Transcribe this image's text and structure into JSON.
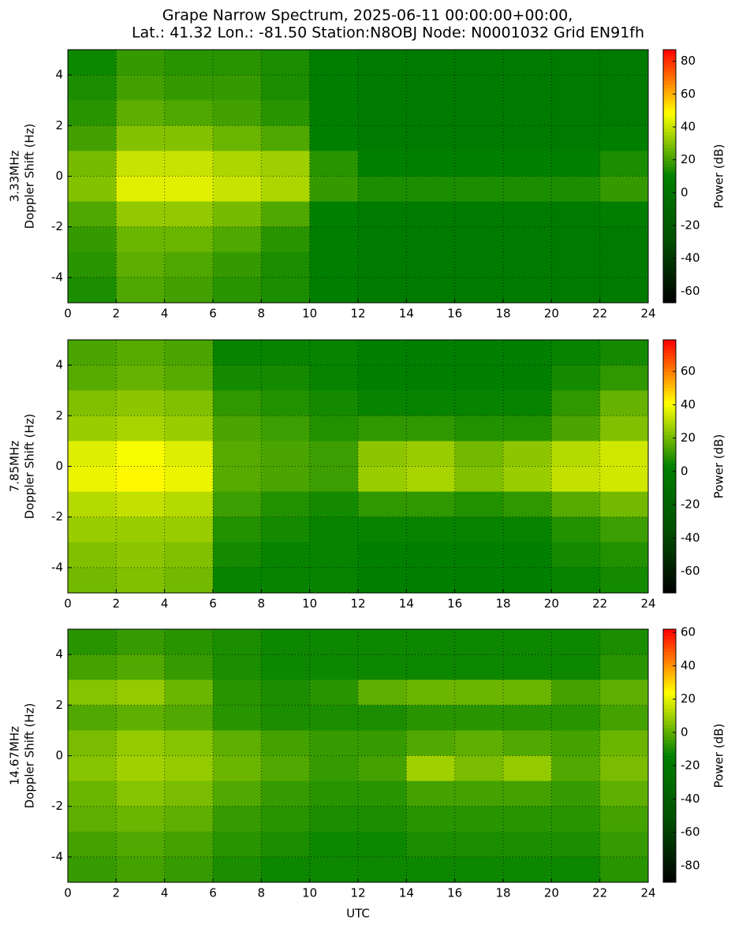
{
  "chart_data": [
    {
      "type": "heatmap",
      "title": [
        "Grape Narrow Spectrum, 2025-06-11 00:00:00+00:00,",
        "Lat.: 41.32 Lon.: -81.50 Station:N8OBJ Node: N0001032 Grid EN91fh"
      ],
      "ylabel": [
        "3.33MHz",
        "Doppler Shift (Hz)"
      ],
      "colorbar_label": "Power (dB)",
      "x": [
        1,
        3,
        5,
        7,
        9,
        11,
        13,
        15,
        17,
        19,
        21,
        23
      ],
      "y": [
        4.5,
        3.5,
        2.5,
        1.5,
        0.5,
        -0.5,
        -1.5,
        -2.5,
        -3.5,
        -4.5
      ],
      "z": [
        [
          12,
          18,
          16,
          16,
          14,
          8,
          6,
          6,
          6,
          6,
          6,
          6
        ],
        [
          14,
          20,
          18,
          18,
          14,
          8,
          6,
          6,
          6,
          6,
          6,
          6
        ],
        [
          16,
          24,
          22,
          20,
          16,
          8,
          6,
          6,
          6,
          6,
          6,
          6
        ],
        [
          20,
          30,
          30,
          26,
          22,
          10,
          6,
          6,
          6,
          6,
          6,
          8
        ],
        [
          28,
          40,
          40,
          36,
          34,
          16,
          10,
          10,
          10,
          10,
          10,
          14
        ],
        [
          30,
          44,
          44,
          40,
          36,
          18,
          14,
          14,
          14,
          14,
          14,
          18
        ],
        [
          22,
          32,
          32,
          28,
          22,
          10,
          6,
          6,
          6,
          6,
          6,
          8
        ],
        [
          18,
          26,
          26,
          22,
          16,
          8,
          6,
          6,
          6,
          6,
          6,
          6
        ],
        [
          16,
          24,
          22,
          18,
          14,
          8,
          6,
          6,
          6,
          6,
          6,
          6
        ],
        [
          14,
          22,
          20,
          16,
          14,
          8,
          6,
          6,
          6,
          6,
          6,
          6
        ]
      ],
      "xlim": [
        0,
        24
      ],
      "xticks": [
        0,
        2,
        4,
        6,
        8,
        10,
        12,
        14,
        16,
        18,
        20,
        22,
        24
      ],
      "ylim": [
        -5,
        5
      ],
      "yticks": [
        -4,
        -2,
        0,
        2,
        4
      ],
      "clim": [
        -67,
        87
      ],
      "cticks": [
        -60,
        -40,
        -20,
        0,
        20,
        40,
        60,
        80
      ],
      "colormap": [
        "#000000",
        "#005000",
        "#008000",
        "#ffff00",
        "#ff0000"
      ],
      "grid": true
    },
    {
      "type": "heatmap",
      "ylabel": [
        "7.85MHz",
        "Doppler Shift (Hz)"
      ],
      "colorbar_label": "Power (dB)",
      "x": [
        1,
        3,
        5,
        7,
        9,
        11,
        13,
        15,
        17,
        19,
        21,
        23
      ],
      "y": [
        4.5,
        3.5,
        2.5,
        1.5,
        0.5,
        -0.5,
        -1.5,
        -2.5,
        -3.5,
        -4.5
      ],
      "z": [
        [
          14,
          16,
          14,
          4,
          4,
          4,
          2,
          2,
          2,
          2,
          4,
          6
        ],
        [
          16,
          18,
          16,
          6,
          6,
          4,
          2,
          2,
          2,
          2,
          6,
          10
        ],
        [
          22,
          24,
          22,
          10,
          8,
          6,
          4,
          4,
          4,
          4,
          10,
          18
        ],
        [
          26,
          28,
          26,
          14,
          12,
          8,
          10,
          10,
          8,
          8,
          14,
          22
        ],
        [
          36,
          40,
          36,
          16,
          14,
          12,
          24,
          26,
          20,
          24,
          30,
          34
        ],
        [
          38,
          42,
          38,
          16,
          14,
          12,
          26,
          28,
          22,
          26,
          32,
          34
        ],
        [
          30,
          32,
          30,
          12,
          8,
          6,
          10,
          10,
          8,
          10,
          16,
          20
        ],
        [
          26,
          26,
          26,
          8,
          6,
          4,
          4,
          4,
          4,
          4,
          8,
          12
        ],
        [
          22,
          24,
          22,
          6,
          4,
          4,
          2,
          2,
          2,
          2,
          6,
          8
        ],
        [
          20,
          22,
          20,
          4,
          4,
          4,
          2,
          2,
          2,
          2,
          4,
          6
        ]
      ],
      "xlim": [
        0,
        24
      ],
      "xticks": [
        0,
        2,
        4,
        6,
        8,
        10,
        12,
        14,
        16,
        18,
        20,
        22,
        24
      ],
      "ylim": [
        -5,
        5
      ],
      "yticks": [
        -4,
        -2,
        0,
        2,
        4
      ],
      "clim": [
        -73,
        79
      ],
      "cticks": [
        -60,
        -40,
        -20,
        0,
        20,
        40,
        60
      ],
      "colormap": [
        "#000000",
        "#005000",
        "#008000",
        "#ffff00",
        "#ff0000"
      ],
      "grid": true
    },
    {
      "type": "heatmap",
      "ylabel": [
        "14.67MHz",
        "Doppler Shift (Hz)"
      ],
      "xlabel": "UTC",
      "colorbar_label": "Power (dB)",
      "x": [
        1,
        3,
        5,
        7,
        9,
        11,
        13,
        15,
        17,
        19,
        21,
        23
      ],
      "y": [
        4.5,
        3.5,
        2.5,
        1.5,
        0.5,
        -0.5,
        -1.5,
        -2.5,
        -3.5,
        -4.5
      ],
      "z": [
        [
          -8,
          -6,
          -8,
          -10,
          -12,
          -12,
          -12,
          -12,
          -12,
          -12,
          -12,
          -10
        ],
        [
          -4,
          -2,
          -6,
          -10,
          -12,
          -12,
          -12,
          -12,
          -12,
          -12,
          -12,
          -8
        ],
        [
          6,
          8,
          2,
          -8,
          -10,
          -8,
          0,
          2,
          2,
          2,
          -4,
          0
        ],
        [
          -2,
          0,
          -2,
          -8,
          -10,
          -10,
          -10,
          -8,
          -8,
          -8,
          -8,
          -4
        ],
        [
          4,
          8,
          6,
          0,
          -4,
          -6,
          -6,
          -2,
          0,
          -2,
          -4,
          2
        ],
        [
          6,
          10,
          8,
          2,
          -2,
          -6,
          -4,
          10,
          4,
          8,
          -2,
          4
        ],
        [
          2,
          6,
          4,
          -2,
          -6,
          -8,
          -8,
          -4,
          -4,
          -4,
          -6,
          0
        ],
        [
          0,
          2,
          0,
          -6,
          -8,
          -10,
          -10,
          -8,
          -8,
          -8,
          -8,
          -4
        ],
        [
          -4,
          -2,
          -4,
          -8,
          -10,
          -12,
          -12,
          -10,
          -10,
          -10,
          -10,
          -6
        ],
        [
          -6,
          -4,
          -6,
          -10,
          -12,
          -12,
          -12,
          -12,
          -12,
          -12,
          -12,
          -8
        ]
      ],
      "xlim": [
        0,
        24
      ],
      "xticks": [
        0,
        2,
        4,
        6,
        8,
        10,
        12,
        14,
        16,
        18,
        20,
        22,
        24
      ],
      "ylim": [
        -5,
        5
      ],
      "yticks": [
        -4,
        -2,
        0,
        2,
        4
      ],
      "clim": [
        -90,
        62
      ],
      "cticks": [
        -80,
        -60,
        -40,
        -20,
        0,
        20,
        40,
        60
      ],
      "colormap": [
        "#000000",
        "#005000",
        "#008000",
        "#ffff00",
        "#ff0000"
      ],
      "grid": true
    }
  ]
}
